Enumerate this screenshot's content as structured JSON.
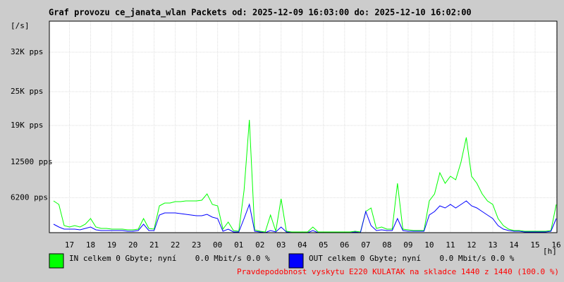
{
  "chart_data": {
    "type": "line",
    "title": "Graf provozu ce_janata_wlan Packets od: 2025-12-09 16:03:00 do: 2025-12-10 16:02:00",
    "y_label": "[/s]",
    "x_label": "[h]",
    "note": "Pravdepodobnost vyskytu E220 KULATAK na skladce 1440 z 1440 (100.0 %)",
    "ylim": [
      0,
      37500
    ],
    "yticks": [
      {
        "value": 6200,
        "label": "6200 pps"
      },
      {
        "value": 12500,
        "label": "12500 pps"
      },
      {
        "value": 19000,
        "label": "19K pps"
      },
      {
        "value": 25000,
        "label": "25K pps"
      },
      {
        "value": 32000,
        "label": "32K pps"
      }
    ],
    "xlim": [
      16.05,
      40.033
    ],
    "xticks": [
      17,
      18,
      19,
      20,
      21,
      22,
      23,
      {
        "value": 24,
        "label": "00"
      },
      {
        "value": 25,
        "label": "01"
      },
      {
        "value": 26,
        "label": "02"
      },
      {
        "value": 27,
        "label": "03"
      },
      {
        "value": 28,
        "label": "04"
      },
      {
        "value": 29,
        "label": "05"
      },
      {
        "value": 30,
        "label": "06"
      },
      {
        "value": 31,
        "label": "07"
      },
      {
        "value": 32,
        "label": "08"
      },
      {
        "value": 33,
        "label": "09"
      },
      {
        "value": 34,
        "label": "10"
      },
      {
        "value": 35,
        "label": "11"
      },
      {
        "value": 36,
        "label": "12"
      },
      {
        "value": 37,
        "label": "13"
      },
      {
        "value": 38,
        "label": "14"
      },
      {
        "value": 39,
        "label": "15"
      },
      {
        "value": 40,
        "label": "16"
      }
    ],
    "grid": true,
    "x": [
      16.25,
      16.5,
      16.75,
      17,
      17.25,
      17.5,
      17.75,
      18,
      18.25,
      18.5,
      18.75,
      19,
      19.25,
      19.5,
      19.75,
      20,
      20.25,
      20.5,
      20.75,
      21,
      21.25,
      21.5,
      21.75,
      22,
      22.25,
      22.5,
      22.75,
      23,
      23.25,
      23.5,
      23.75,
      24,
      24.25,
      24.5,
      24.75,
      25,
      25.25,
      25.5,
      25.75,
      26,
      26.25,
      26.5,
      26.75,
      27,
      27.25,
      27.5,
      27.75,
      28,
      28.25,
      28.5,
      28.75,
      29,
      29.25,
      29.5,
      29.75,
      30,
      30.25,
      30.5,
      30.75,
      31,
      31.25,
      31.5,
      31.75,
      32,
      32.25,
      32.5,
      32.75,
      33,
      33.25,
      33.5,
      33.75,
      34,
      34.25,
      34.5,
      34.75,
      35,
      35.25,
      35.5,
      35.75,
      36,
      36.25,
      36.5,
      36.75,
      37,
      37.25,
      37.5,
      37.75,
      38,
      38.25,
      38.5,
      38.75,
      39,
      39.25,
      39.5,
      39.75,
      40
    ],
    "series": [
      {
        "name": "IN celkem 0 Gbyte; nyní    0.0 Mbit/s 0.0 %",
        "color": "#00ff00",
        "values": [
          5625,
          5000,
          1250,
          1000,
          1250,
          1000,
          1500,
          2500,
          1000,
          750,
          750,
          625,
          625,
          625,
          500,
          500,
          625,
          2500,
          750,
          625,
          4750,
          5250,
          5250,
          5500,
          5500,
          5625,
          5625,
          5625,
          5750,
          6875,
          5000,
          4750,
          625,
          1875,
          375,
          250,
          7500,
          20000,
          500,
          250,
          125,
          3125,
          250,
          6000,
          250,
          125,
          125,
          125,
          125,
          1000,
          125,
          125,
          125,
          125,
          125,
          125,
          125,
          250,
          125,
          3750,
          4375,
          750,
          1000,
          625,
          625,
          8750,
          625,
          500,
          375,
          375,
          375,
          5625,
          6875,
          10625,
          8750,
          10000,
          9375,
          12500,
          16875,
          10000,
          8750,
          6875,
          5625,
          5000,
          2500,
          1250,
          625,
          375,
          375,
          250,
          250,
          250,
          250,
          250,
          375,
          5000
        ]
      },
      {
        "name": "OUT celkem 0 Gbyte; nyní    0.0 Mbit/s 0.0 %",
        "color": "#0000ff",
        "values": [
          1500,
          1000,
          625,
          625,
          625,
          500,
          750,
          1000,
          500,
          375,
          375,
          375,
          375,
          375,
          250,
          250,
          375,
          1500,
          375,
          375,
          3125,
          3500,
          3500,
          3500,
          3375,
          3250,
          3125,
          3000,
          3000,
          3250,
          2750,
          2500,
          250,
          625,
          125,
          125,
          2500,
          5000,
          250,
          125,
          0,
          375,
          125,
          1000,
          125,
          0,
          0,
          0,
          0,
          375,
          0,
          0,
          0,
          0,
          0,
          0,
          0,
          125,
          0,
          3750,
          1250,
          375,
          500,
          375,
          375,
          2500,
          375,
          250,
          250,
          250,
          250,
          3125,
          3750,
          4750,
          4375,
          5000,
          4375,
          5000,
          5625,
          4750,
          4375,
          3750,
          3125,
          2500,
          1250,
          625,
          375,
          250,
          250,
          125,
          125,
          125,
          125,
          125,
          250,
          2500
        ]
      }
    ]
  }
}
